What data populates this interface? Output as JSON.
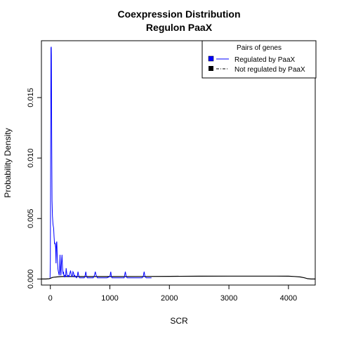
{
  "chart_data": {
    "type": "line",
    "title": "Coexpression Distribution",
    "subtitle": "Regulon PaaX",
    "xlabel": "SCR",
    "ylabel": "Probability Density",
    "xlim": [
      -150,
      4450
    ],
    "ylim": [
      -0.0005,
      0.0197
    ],
    "x_ticks": [
      0,
      1000,
      2000,
      3000,
      4000
    ],
    "x_tick_labels": [
      "0",
      "1000",
      "2000",
      "3000",
      "4000"
    ],
    "y_ticks": [
      0,
      0.005,
      0.01,
      0.015
    ],
    "y_tick_labels": [
      "0.000",
      "0.005",
      "0.010",
      "0.015"
    ],
    "grid": false,
    "legend": {
      "title": "Pairs of genes",
      "position": "top-right",
      "entries": [
        "Regulated by  PaaX",
        "Not regulated by  PaaX"
      ]
    },
    "series": [
      {
        "name": "Regulated by  PaaX",
        "color": "#0000ff",
        "x": [
          -5,
          0,
          10,
          15,
          18,
          22,
          28,
          35,
          45,
          55,
          62,
          70,
          78,
          88,
          95,
          100,
          108,
          115,
          122,
          128,
          135,
          140,
          148,
          155,
          162,
          170,
          175,
          180,
          185,
          195,
          205,
          215,
          222,
          228,
          235,
          242,
          250,
          258,
          265,
          272,
          280,
          290,
          300,
          310,
          320,
          330,
          340,
          350,
          360,
          372,
          380,
          390,
          400,
          410,
          420,
          440,
          455,
          465,
          475,
          490,
          520,
          550,
          570,
          585,
          595,
          605,
          620,
          680,
          720,
          740,
          755,
          770,
          790,
          850,
          950,
          1000,
          1015,
          1025,
          1035,
          1050,
          1100,
          1200,
          1240,
          1260,
          1275,
          1290,
          1320,
          1450,
          1540,
          1560,
          1575,
          1590,
          1610,
          1650,
          1700
        ],
        "y": [
          0.0001,
          0.0015,
          0.0191,
          0.0192,
          0.0185,
          0.012,
          0.0065,
          0.0052,
          0.0045,
          0.0042,
          0.0035,
          0.0029,
          0.003,
          0.0026,
          0.0013,
          0.0029,
          0.0031,
          0.002,
          0.0012,
          0.0008,
          0.0006,
          0.0005,
          0.0003,
          0.0008,
          0.002,
          0.0008,
          0.0003,
          0.0005,
          0.0012,
          0.002,
          0.0009,
          0.0004,
          0.0006,
          0.0003,
          0.0002,
          0.0003,
          0.0002,
          0.0003,
          0.0009,
          0.0006,
          0.0003,
          0.0002,
          0.0003,
          0.0002,
          0.0003,
          0.0005,
          0.0007,
          0.0004,
          0.0002,
          0.0003,
          0.0006,
          0.0005,
          0.0002,
          0.0003,
          0.0002,
          0.0001,
          0.0003,
          0.0006,
          0.0003,
          0.0001,
          0.0001,
          0.0001,
          0.0001,
          0.0003,
          0.0006,
          0.0003,
          0.0001,
          0.0001,
          0.0001,
          0.0003,
          0.0006,
          0.0003,
          0.0001,
          0.0001,
          0.0001,
          0.0002,
          0.0006,
          0.0002,
          0.0001,
          0.0001,
          0.0001,
          0.0001,
          0.0001,
          0.0006,
          0.0002,
          0.0001,
          0.0001,
          0.0001,
          0.0001,
          0.0002,
          0.0006,
          0.0002,
          0.0001,
          0.0001,
          0.0001
        ]
      },
      {
        "name": "Not regulated by  PaaX",
        "color": "#000000",
        "x": [
          -150,
          -80,
          -20,
          0,
          30,
          60,
          100,
          150,
          200,
          300,
          500,
          800,
          1000,
          1500,
          2000,
          2500,
          3000,
          3500,
          3800,
          4000,
          4100,
          4200,
          4270,
          4320,
          4380,
          4450
        ],
        "y": [
          0.0,
          0.0,
          2e-05,
          6e-05,
          0.00012,
          0.00015,
          0.00017,
          0.00019,
          0.0002,
          0.0002,
          0.0002,
          0.0002,
          0.0002,
          0.00021,
          0.00022,
          0.00023,
          0.00024,
          0.00024,
          0.00024,
          0.00023,
          0.00021,
          0.00017,
          0.0001,
          3e-05,
          0.0,
          0.0
        ]
      }
    ]
  }
}
